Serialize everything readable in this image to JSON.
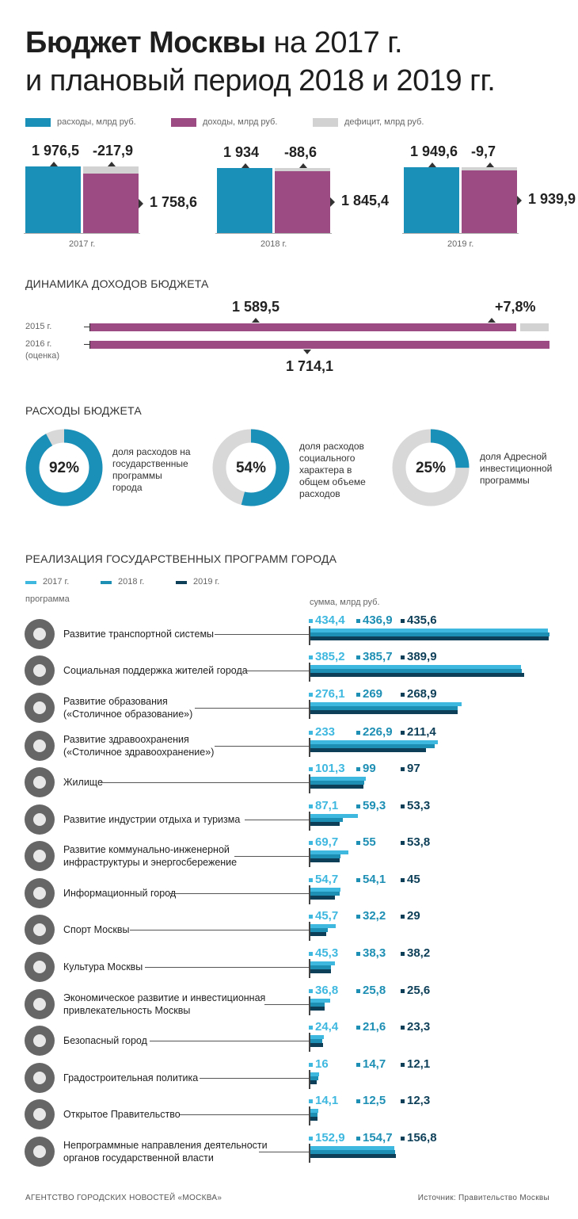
{
  "title_bold": "Бюджет Москвы",
  "title_rest": "на 2017 г.",
  "title_line2": "и плановый период 2018 и 2019 гг.",
  "legend": {
    "expenses": "расходы, млрд руб.",
    "revenues": "доходы, млрд руб.",
    "deficit": "дефицит, млрд руб."
  },
  "colors": {
    "expenses": "#1a8fb8",
    "revenues": "#9c4c83",
    "deficit": "#d2d2d2",
    "y2017": "#3fb8e0",
    "y2018": "#1e8fb4",
    "y2019": "#0e3f58"
  },
  "chart_data": [
    {
      "type": "bar",
      "categories": [
        "2017 г.",
        "2018 г.",
        "2019 г."
      ],
      "series": [
        {
          "name": "расходы, млрд руб.",
          "values": [
            1976.5,
            1934,
            1949.6
          ],
          "labels": [
            "1 976,5",
            "1 934",
            "1 949,6"
          ]
        },
        {
          "name": "доходы, млрд руб.",
          "values": [
            1758.6,
            1845.4,
            1939.9
          ],
          "labels": [
            "1 758,6",
            "1 845,4",
            "1 939,9"
          ]
        },
        {
          "name": "дефицит, млрд руб.",
          "values": [
            -217.9,
            -88.6,
            -9.7
          ],
          "labels": [
            "-217,9",
            "-88,6",
            "-9,7"
          ]
        }
      ]
    },
    {
      "type": "bar",
      "title": "ДИНАМИКА ДОХОДОВ БЮДЖЕТА",
      "categories": [
        "2015 г.",
        "2016 г."
      ],
      "category_note": "(оценка)",
      "values": [
        1589.5,
        1714.1
      ],
      "labels": [
        "1 589,5",
        "1 714,1"
      ],
      "growth_label": "+7,8%"
    },
    {
      "type": "pie",
      "title": "РАСХОДЫ БЮДЖЕТА",
      "items": [
        {
          "value": 92,
          "label": "92%",
          "text": [
            "доля расходов на",
            "государственные",
            "программы",
            "города"
          ]
        },
        {
          "value": 54,
          "label": "54%",
          "text": [
            "доля расходов",
            "социального",
            "характера в",
            "общем объеме",
            "расходов"
          ]
        },
        {
          "value": 25,
          "label": "25%",
          "text": [
            "доля Адресной",
            "инвестиционной",
            "программы"
          ]
        }
      ]
    },
    {
      "type": "bar",
      "title": "РЕАЛИЗАЦИЯ ГОСУДАРСТВЕННЫХ ПРОГРАММ ГОРОДА",
      "legend": [
        "2017 г.",
        "2018 г.",
        "2019 г."
      ],
      "col_program": "программа",
      "col_sum": "сумма, млрд руб.",
      "programs": [
        {
          "name": [
            "Развитие транспортной системы"
          ],
          "icon": "car-icon",
          "values": [
            434.4,
            436.9,
            435.6
          ],
          "labels": [
            "434,4",
            "436,9",
            "435,6"
          ]
        },
        {
          "name": [
            "Социальная поддержка жителей города"
          ],
          "icon": "people-icon",
          "values": [
            385.2,
            385.7,
            389.9
          ],
          "labels": [
            "385,2",
            "385,7",
            "389,9"
          ]
        },
        {
          "name": [
            "Развитие образования",
            "(«Столичное образование»)"
          ],
          "icon": "graduation-cap-icon",
          "values": [
            276.1,
            269,
            268.9
          ],
          "labels": [
            "276,1",
            "269",
            "268,9"
          ]
        },
        {
          "name": [
            "Развитие здравоохранения",
            "(«Столичное здравоохранение»)"
          ],
          "icon": "caduceus-icon",
          "values": [
            233,
            226.9,
            211.4
          ],
          "labels": [
            "233",
            "226,9",
            "211,4"
          ]
        },
        {
          "name": [
            "Жилище"
          ],
          "icon": "building-icon",
          "values": [
            101.3,
            99,
            97
          ],
          "labels": [
            "101,3",
            "99",
            "97"
          ]
        },
        {
          "name": [
            "Развитие индустрии отдыха и туризма"
          ],
          "icon": "camera-icon",
          "values": [
            87.1,
            59.3,
            53.3
          ],
          "labels": [
            "87,1",
            "59,3",
            "53,3"
          ]
        },
        {
          "name": [
            "Развитие коммунально-инженерной",
            "инфраструктуры и энергосбережение"
          ],
          "icon": "pipe-icon",
          "values": [
            69.7,
            55,
            53.8
          ],
          "labels": [
            "69,7",
            "55",
            "53,8"
          ]
        },
        {
          "name": [
            "Информационный город"
          ],
          "icon": "info-icon",
          "values": [
            54.7,
            54.1,
            45
          ],
          "labels": [
            "54,7",
            "54,1",
            "45"
          ]
        },
        {
          "name": [
            "Спорт Москвы"
          ],
          "icon": "dumbbell-icon",
          "values": [
            45.7,
            32.2,
            29
          ],
          "labels": [
            "45,7",
            "32,2",
            "29"
          ]
        },
        {
          "name": [
            "Культура Москвы"
          ],
          "icon": "museum-icon",
          "values": [
            45.3,
            38.3,
            38.2
          ],
          "labels": [
            "45,3",
            "38,3",
            "38,2"
          ]
        },
        {
          "name": [
            "Экономическое развитие и инвестиционная",
            "привлекательность Москвы"
          ],
          "icon": "chart-icon",
          "values": [
            36.8,
            25.8,
            25.6
          ],
          "labels": [
            "36,8",
            "25,8",
            "25,6"
          ]
        },
        {
          "name": [
            "Безопасный город"
          ],
          "icon": "document-icon",
          "values": [
            24.4,
            21.6,
            23.3
          ],
          "labels": [
            "24,4",
            "21,6",
            "23,3"
          ]
        },
        {
          "name": [
            "Градостроительная политика"
          ],
          "icon": "crane-hook-icon",
          "values": [
            16,
            14.7,
            12.1
          ],
          "labels": [
            "16",
            "14,7",
            "12,1"
          ]
        },
        {
          "name": [
            "Открытое Правительство"
          ],
          "icon": "crowd-icon",
          "values": [
            14.1,
            12.5,
            12.3
          ],
          "labels": [
            "14,1",
            "12,5",
            "12,3"
          ]
        },
        {
          "name": [
            "Непрограммные направления деятельности",
            "органов государственной власти"
          ],
          "icon": "microscope-icon",
          "values": [
            152.9,
            154.7,
            156.8
          ],
          "labels": [
            "152,9",
            "154,7",
            "156,8"
          ]
        }
      ]
    }
  ],
  "footer": {
    "agency": "АГЕНТСТВО ГОРОДСКИХ НОВОСТЕЙ «МОСКВА»",
    "source": "Источник: Правительство Москвы"
  }
}
